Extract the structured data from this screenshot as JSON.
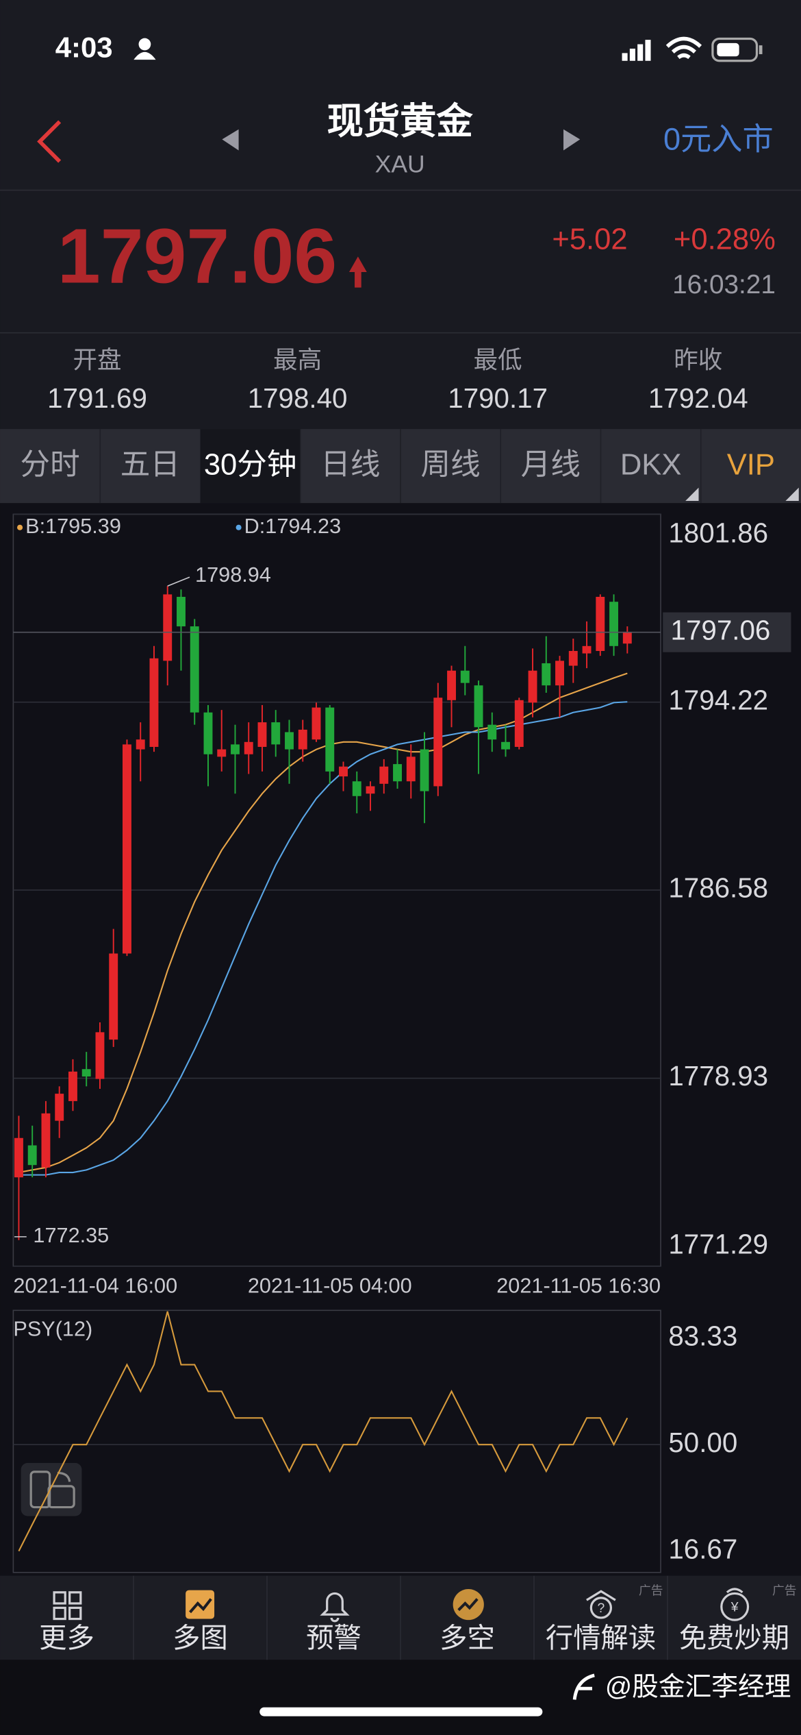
{
  "status_bar": {
    "time": "4:03"
  },
  "header": {
    "title": "现货黄金",
    "subtitle": "XAU",
    "action": "0元入市"
  },
  "quote": {
    "price": "1797.06",
    "change": "+5.02",
    "change_pct": "+0.28%",
    "time": "16:03:21"
  },
  "stats": [
    {
      "label": "开盘",
      "value": "1791.69"
    },
    {
      "label": "最高",
      "value": "1798.40"
    },
    {
      "label": "最低",
      "value": "1790.17"
    },
    {
      "label": "昨收",
      "value": "1792.04"
    }
  ],
  "tabs": [
    "分时",
    "五日",
    "30分钟",
    "日线",
    "周线",
    "月线",
    "DKX",
    "VIP"
  ],
  "chart_data": [
    {
      "type": "candlestick",
      "up_color": "#e5262a",
      "down_color": "#22a83b",
      "categories": [
        "2021-11-04 16:00",
        null,
        null,
        null,
        null,
        null,
        null,
        null,
        null,
        null,
        null,
        null,
        null,
        null,
        null,
        null,
        null,
        null,
        null,
        null,
        null,
        null,
        null,
        "2021-11-05 04:00",
        null,
        null,
        null,
        null,
        null,
        null,
        null,
        null,
        null,
        null,
        null,
        null,
        null,
        null,
        null,
        null,
        null,
        null,
        null,
        null,
        null,
        "2021-11-05 16:30"
      ],
      "open": [
        1774.9,
        1776.2,
        1775.3,
        1777.2,
        1778.0,
        1779.3,
        1778.9,
        1780.5,
        1784.0,
        1792.3,
        1792.4,
        1795.9,
        1798.5,
        1797.3,
        1793.8,
        1792.0,
        1792.5,
        1792.1,
        1792.4,
        1793.4,
        1793.0,
        1792.3,
        1792.7,
        1794.0,
        1791.2,
        1791.0,
        1790.5,
        1790.9,
        1791.7,
        1791.0,
        1792.3,
        1790.8,
        1794.3,
        1795.5,
        1794.9,
        1793.3,
        1792.6,
        1792.4,
        1794.2,
        1795.8,
        1794.9,
        1795.7,
        1796.2,
        1796.3,
        1798.3,
        1796.6
      ],
      "high": [
        1777.4,
        1777.0,
        1778.0,
        1778.6,
        1779.7,
        1780.0,
        1781.2,
        1785.0,
        1792.7,
        1793.4,
        1796.5,
        1798.94,
        1798.8,
        1797.6,
        1794.1,
        1793.9,
        1793.3,
        1793.4,
        1794.1,
        1793.9,
        1793.5,
        1793.5,
        1794.2,
        1794.1,
        1791.8,
        1791.4,
        1791.0,
        1791.9,
        1792.3,
        1792.5,
        1793.0,
        1795.0,
        1795.7,
        1796.5,
        1795.1,
        1793.8,
        1793.3,
        1794.4,
        1796.4,
        1796.9,
        1796.1,
        1796.8,
        1797.5,
        1798.6,
        1798.6,
        1797.3
      ],
      "low": [
        1772.35,
        1774.9,
        1774.9,
        1776.5,
        1777.6,
        1778.6,
        1778.5,
        1780.2,
        1783.9,
        1791.0,
        1792.2,
        1794.9,
        1795.5,
        1793.3,
        1790.8,
        1791.4,
        1790.5,
        1791.3,
        1791.4,
        1792.0,
        1790.9,
        1791.8,
        1792.6,
        1790.9,
        1790.6,
        1789.7,
        1789.8,
        1790.5,
        1790.7,
        1790.3,
        1789.3,
        1790.4,
        1793.2,
        1794.5,
        1791.3,
        1792.2,
        1792.0,
        1792.3,
        1793.6,
        1794.6,
        1793.6,
        1795.0,
        1795.6,
        1796.1,
        1796.1,
        1796.2
      ],
      "close": [
        1776.5,
        1775.4,
        1777.5,
        1778.3,
        1779.2,
        1779.0,
        1780.8,
        1784.0,
        1792.5,
        1792.7,
        1796.0,
        1798.6,
        1797.3,
        1793.8,
        1792.1,
        1792.3,
        1792.1,
        1792.6,
        1793.4,
        1792.5,
        1792.3,
        1793.1,
        1794.0,
        1791.4,
        1791.6,
        1790.4,
        1790.8,
        1791.6,
        1791.0,
        1792.0,
        1790.6,
        1794.4,
        1795.5,
        1795.0,
        1793.2,
        1792.7,
        1792.3,
        1794.3,
        1795.5,
        1794.9,
        1795.9,
        1796.3,
        1796.5,
        1798.5,
        1796.5,
        1797.06
      ],
      "series": [
        {
          "name": "B:1795.39",
          "color": "#e7a54a",
          "values": [
            1775.1,
            1775.2,
            1775.3,
            1775.5,
            1775.8,
            1776.1,
            1776.5,
            1777.2,
            1778.5,
            1780.0,
            1781.6,
            1783.3,
            1784.8,
            1786.1,
            1787.2,
            1788.2,
            1789.0,
            1789.8,
            1790.5,
            1791.1,
            1791.6,
            1792.0,
            1792.3,
            1792.5,
            1792.6,
            1792.6,
            1792.5,
            1792.4,
            1792.3,
            1792.2,
            1792.2,
            1792.3,
            1792.6,
            1792.9,
            1793.1,
            1793.2,
            1793.3,
            1793.5,
            1793.8,
            1794.1,
            1794.4,
            1794.6,
            1794.8,
            1795.0,
            1795.2,
            1795.39
          ]
        },
        {
          "name": "D:1794.23",
          "color": "#5aa6e6",
          "values": [
            1775.0,
            1775.0,
            1775.0,
            1775.1,
            1775.1,
            1775.2,
            1775.4,
            1775.6,
            1776.0,
            1776.5,
            1777.2,
            1778.0,
            1779.0,
            1780.1,
            1781.3,
            1782.6,
            1783.9,
            1785.2,
            1786.4,
            1787.6,
            1788.6,
            1789.5,
            1790.3,
            1790.9,
            1791.4,
            1791.8,
            1792.1,
            1792.3,
            1792.5,
            1792.6,
            1792.7,
            1792.8,
            1792.9,
            1793.0,
            1793.0,
            1793.1,
            1793.2,
            1793.3,
            1793.4,
            1793.5,
            1793.6,
            1793.8,
            1793.9,
            1794.0,
            1794.2,
            1794.23
          ]
        }
      ],
      "ylim": [
        1771.29,
        1801.86
      ],
      "yticks": [
        1801.86,
        1794.22,
        1786.58,
        1778.93,
        1771.29
      ],
      "grid": true
    },
    {
      "type": "line",
      "series": [
        {
          "name": "PSY(12)",
          "color": "#d69a3c",
          "values": [
            16.67,
            25,
            33.33,
            41.67,
            50,
            50,
            58.33,
            66.67,
            75,
            66.67,
            75,
            91.67,
            75,
            75,
            66.67,
            66.67,
            58.33,
            58.33,
            58.33,
            50,
            41.67,
            50,
            50,
            41.67,
            50,
            50,
            58.33,
            58.33,
            58.33,
            58.33,
            50,
            58.33,
            66.67,
            58.33,
            50,
            50,
            41.67,
            50,
            50,
            41.67,
            50,
            50,
            58.33,
            58.33,
            50,
            58.33
          ]
        }
      ],
      "ylim": [
        10,
        92
      ],
      "yticks": [
        {
          "value": 83.33,
          "label": "83.33"
        },
        {
          "value": 50,
          "label": "50.00"
        },
        {
          "value": 16.67,
          "label": "16.67"
        }
      ],
      "grid": true
    }
  ],
  "nav": [
    {
      "label": "更多"
    },
    {
      "label": "多图"
    },
    {
      "label": "预警"
    },
    {
      "label": "多空"
    },
    {
      "label": "行情解读",
      "badge": "广告"
    },
    {
      "label": "免费炒期",
      "badge": "广告"
    }
  ],
  "watermark": "@股金汇李经理"
}
